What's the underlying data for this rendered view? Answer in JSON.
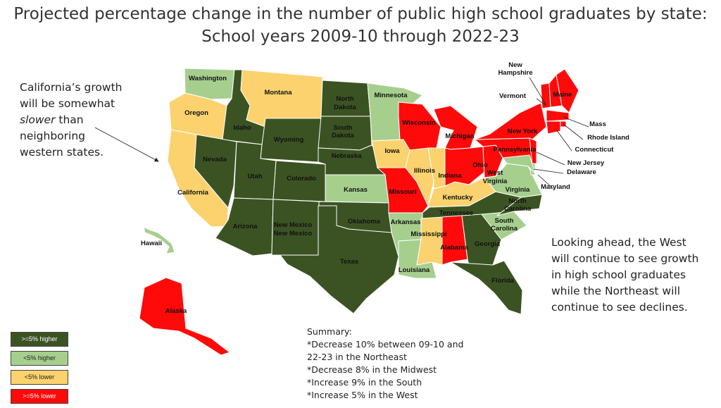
{
  "title_line1": "Projected percentage change in the number of public high school graduates by state:",
  "title_line2": "School years 2009-10 through 2022-23",
  "colors": {
    "high5": "#3b5323",
    "high": "#a6cf8e",
    "low": "#fbd26e",
    "low5": "#ff0a0a",
    "border": "#ffffff"
  },
  "legend": [
    {
      "label": ">=5% higher",
      "color": "#3b5323"
    },
    {
      "label": "<5% higher",
      "color": "#a6cf8e"
    },
    {
      "label": "<5% lower",
      "color": "#fbd26e"
    },
    {
      "label": ">=5% lower",
      "color": "#ff0a0a"
    }
  ],
  "annotation_ca": [
    "California’s growth",
    "will be somewhat",
    "slower than",
    "neighboring",
    "western states."
  ],
  "annotation_ca_italic": "slower",
  "annotation_west": [
    "Looking ahead, the West",
    "will continue to see growth",
    "in high school graduates",
    "while the Northeast will",
    "continue to see declines."
  ],
  "summary": [
    "Summary:",
    "*Decrease 10% between 09-10 and",
    "22-23 in the Northeast",
    "*Decrease 8% in the Midwest",
    "*Increase 9% in the South",
    "*Increase 5% in the West"
  ],
  "states": {
    "Washington": "high",
    "Oregon": "low",
    "California": "low",
    "Idaho": "high5",
    "Nevada": "high5",
    "Montana": "low",
    "Wyoming": "high5",
    "Utah": "high5",
    "Arizona": "high5",
    "Colorado": "high5",
    "New Mexico": "high5",
    "North Dakota": "high5",
    "South Dakota": "high5",
    "Nebraska": "high5",
    "Kansas": "high",
    "Oklahoma": "high5",
    "Texas": "high5",
    "Minnesota": "high",
    "Iowa": "low",
    "Missouri": "low5",
    "Arkansas": "high",
    "Louisiana": "high",
    "Wisconsin": "low5",
    "Illinois": "low",
    "Indiana": "low",
    "Michigan": "low5",
    "Ohio": "low5",
    "Kentucky": "low",
    "Tennessee": "high5",
    "Mississippi": "low",
    "Alabama": "low5",
    "Georgia": "high5",
    "Florida": "high5",
    "South Carolina": "high",
    "North Carolina": "high5",
    "Virginia": "high",
    "West Virginia": "low5",
    "Pennsylvania": "low5",
    "New York": "low5",
    "Vermont": "low5",
    "New Hampshire": "low5",
    "Maine": "low5",
    "Mass": "low5",
    "Rhode Island": "low5",
    "Connecticut": "low5",
    "New Jersey": "low5",
    "Delaware": "high",
    "Maryland": "high",
    "Alaska": "low5",
    "Hawaii": "high"
  }
}
